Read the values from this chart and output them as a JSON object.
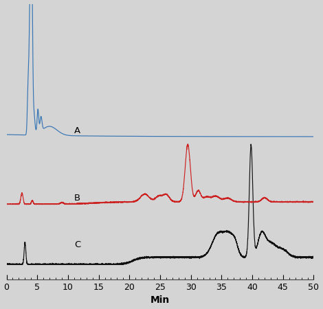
{
  "background_color": "#d4d4d4",
  "xlim": [
    0,
    50
  ],
  "xlabel": "Min",
  "xlabel_fontsize": 10,
  "tick_label_fontsize": 9,
  "label_a": "A",
  "label_b": "B",
  "label_c": "C",
  "color_a": "#3575b5",
  "color_b": "#cc2222",
  "color_c": "#111111",
  "linewidth": 0.85
}
